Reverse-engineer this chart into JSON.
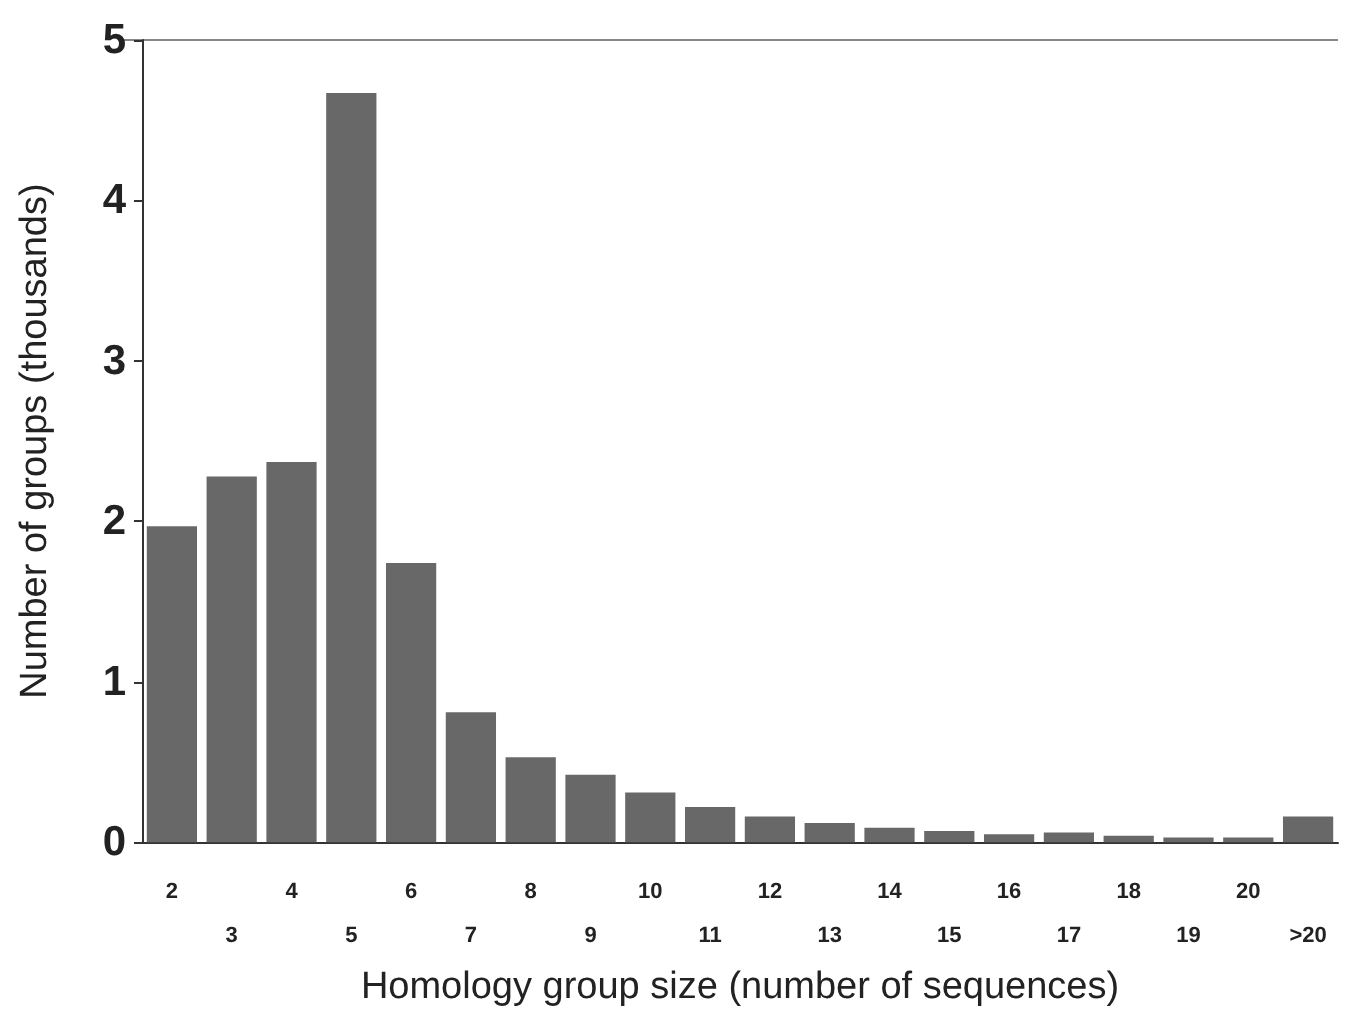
{
  "chart_data": {
    "type": "bar",
    "xlabel": "Homology group size (number of sequences)",
    "ylabel": "Number of groups (thousands)",
    "categories": [
      "2",
      "3",
      "4",
      "5",
      "6",
      "7",
      "8",
      "9",
      "10",
      "11",
      "12",
      "13",
      "14",
      "15",
      "16",
      "17",
      "18",
      "19",
      "20",
      ">20"
    ],
    "values": [
      1.97,
      2.28,
      2.37,
      4.67,
      1.74,
      0.81,
      0.53,
      0.42,
      0.31,
      0.22,
      0.16,
      0.12,
      0.09,
      0.07,
      0.05,
      0.06,
      0.04,
      0.03,
      0.03,
      0.16
    ],
    "color": "#686868",
    "ylim": [
      0,
      5
    ],
    "yticks": [
      0,
      1,
      2,
      3,
      4,
      5
    ],
    "grid": false
  }
}
